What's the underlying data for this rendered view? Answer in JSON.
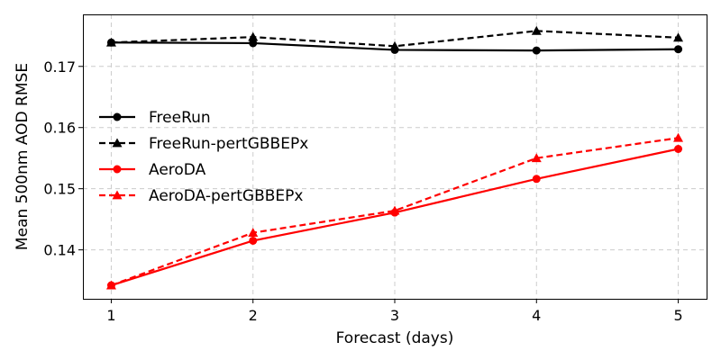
{
  "chart_data": {
    "type": "line",
    "xlabel": "Forecast (days)",
    "ylabel": "Mean 500nm AOD RMSE",
    "x": [
      1,
      2,
      3,
      4,
      5
    ],
    "xlim": [
      0.8,
      5.2
    ],
    "ylim": [
      0.132,
      0.1785
    ],
    "xticks": [
      1,
      2,
      3,
      4,
      5
    ],
    "yticks": [
      0.14,
      0.15,
      0.16,
      0.17
    ],
    "grid": true,
    "legend_position": "center-left",
    "series": [
      {
        "name": "FreeRun",
        "color": "#000000",
        "linestyle": "solid",
        "marker": "circle",
        "values": [
          0.1739,
          0.1738,
          0.1727,
          0.1726,
          0.1728
        ]
      },
      {
        "name": "FreeRun-pertGBBEPx",
        "color": "#000000",
        "linestyle": "dashed",
        "marker": "triangle",
        "values": [
          0.1739,
          0.1748,
          0.1733,
          0.1758,
          0.1747
        ]
      },
      {
        "name": "AeroDA",
        "color": "#ff0000",
        "linestyle": "solid",
        "marker": "circle",
        "values": [
          0.1342,
          0.1415,
          0.1461,
          0.1516,
          0.1565
        ]
      },
      {
        "name": "AeroDA-pertGBBEPx",
        "color": "#ff0000",
        "linestyle": "dashed",
        "marker": "triangle",
        "values": [
          0.1342,
          0.1428,
          0.1464,
          0.155,
          0.1583
        ]
      }
    ]
  }
}
